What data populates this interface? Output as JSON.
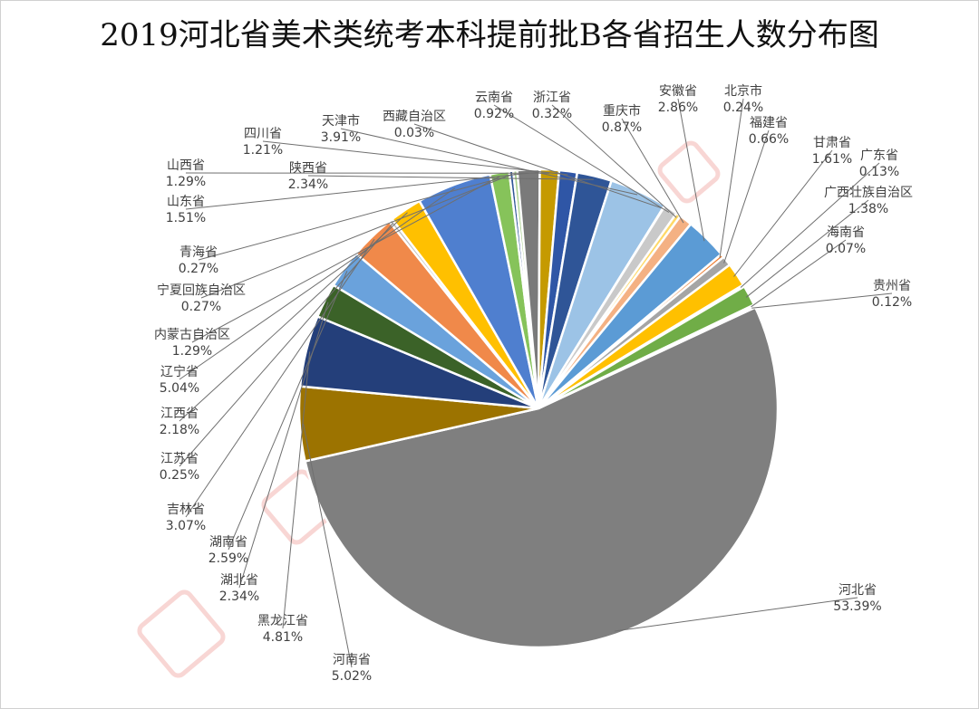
{
  "chart_data": {
    "type": "pie",
    "title": "2019河北省美术类统考本科提前批B各省招生人数分布图",
    "series": [
      {
        "name": "河北省",
        "display": "53.39%",
        "value": 53.39,
        "color": "#7f7f7f"
      },
      {
        "name": "河南省",
        "display": "5.02%",
        "value": 5.02,
        "color": "#9c7300"
      },
      {
        "name": "黑龙江省",
        "display": "4.81%",
        "value": 4.81,
        "color": "#243f7a"
      },
      {
        "name": "湖北省",
        "display": "2.34%",
        "value": 2.34,
        "color": "#3b6228"
      },
      {
        "name": "湖南省",
        "display": "2.59%",
        "value": 2.59,
        "color": "#6aa2dc"
      },
      {
        "name": "吉林省",
        "display": "3.07%",
        "value": 3.07,
        "color": "#f0894a"
      },
      {
        "name": "江苏省",
        "display": "0.25%",
        "value": 0.25,
        "color": "#bdbdbd"
      },
      {
        "name": "江西省",
        "display": "2.18%",
        "value": 2.18,
        "color": "#ffc000"
      },
      {
        "name": "辽宁省",
        "display": "5.04%",
        "value": 5.04,
        "color": "#4f7fcf"
      },
      {
        "name": "内蒙古自治区",
        "display": "1.29%",
        "value": 1.29,
        "color": "#86c35a"
      },
      {
        "name": "宁夏回族自治区",
        "display": "0.27%",
        "value": 0.27,
        "color": "#2f5597"
      },
      {
        "name": "青海省",
        "display": "0.27%",
        "value": 0.27,
        "color": "#a9d18e"
      },
      {
        "name": "山东省",
        "display": "1.51%",
        "value": 1.51,
        "color": "#7a7a7a"
      },
      {
        "name": "山西省",
        "display": "1.29%",
        "value": 1.29,
        "color": "#c59a00"
      },
      {
        "name": "四川省",
        "display": "1.21%",
        "value": 1.21,
        "color": "#2f56a6"
      },
      {
        "name": "陕西省",
        "display": "2.34%",
        "value": 2.34,
        "color": "#2f5597"
      },
      {
        "name": "天津市",
        "display": "3.91%",
        "value": 3.91,
        "color": "#9cc3e6"
      },
      {
        "name": "西藏自治区",
        "display": "0.03%",
        "value": 0.03,
        "color": "#d9d9d9"
      },
      {
        "name": "云南省",
        "display": "0.92%",
        "value": 0.92,
        "color": "#c9c9c9"
      },
      {
        "name": "浙江省",
        "display": "0.32%",
        "value": 0.32,
        "color": "#ffd966"
      },
      {
        "name": "重庆市",
        "display": "0.87%",
        "value": 0.87,
        "color": "#f4b183"
      },
      {
        "name": "安徽省",
        "display": "2.86%",
        "value": 2.86,
        "color": "#5b9bd5"
      },
      {
        "name": "北京市",
        "display": "0.24%",
        "value": 0.24,
        "color": "#ed7d31"
      },
      {
        "name": "福建省",
        "display": "0.66%",
        "value": 0.66,
        "color": "#a5a5a5"
      },
      {
        "name": "甘肃省",
        "display": "1.61%",
        "value": 1.61,
        "color": "#ffc000"
      },
      {
        "name": "广东省",
        "display": "0.13%",
        "value": 0.13,
        "color": "#4472c4"
      },
      {
        "name": "广西壮族自治区",
        "display": "1.38%",
        "value": 1.38,
        "color": "#70ad47"
      },
      {
        "name": "海南省",
        "display": "0.07%",
        "value": 0.07,
        "color": "#264478"
      },
      {
        "name": "贵州省",
        "display": "0.12%",
        "value": 0.12,
        "color": "#9e480e"
      }
    ]
  }
}
